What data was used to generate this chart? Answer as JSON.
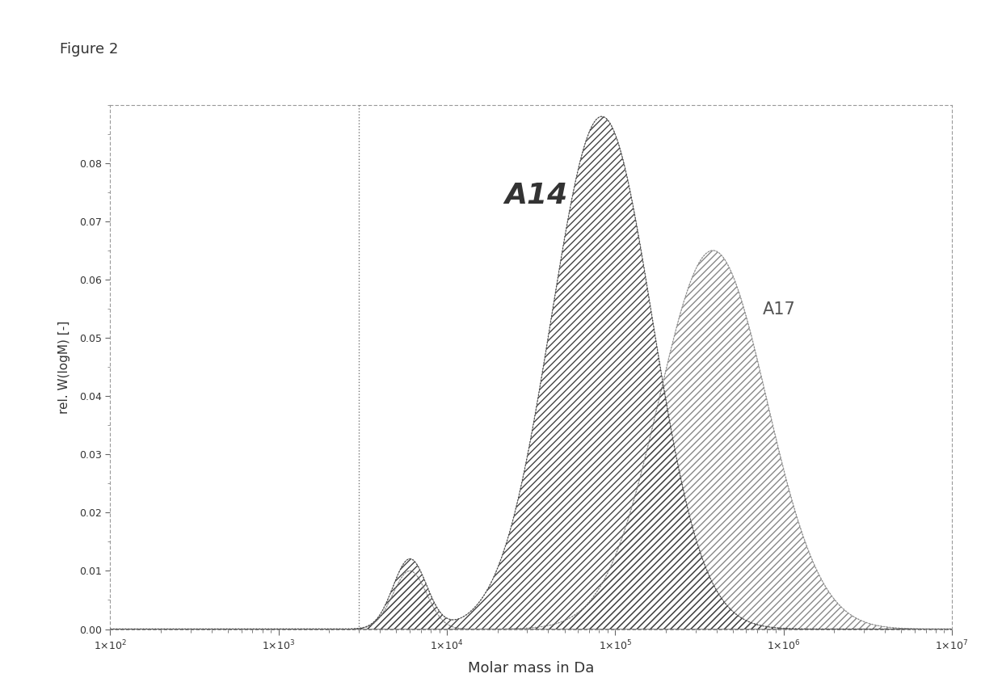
{
  "title": "Figure 2",
  "xlabel": "Molar mass in Da",
  "ylabel": "rel. W(logM) [-]",
  "xlim_log": [
    100,
    10000000
  ],
  "ylim": [
    0.0,
    0.09
  ],
  "yticks": [
    0.0,
    0.01,
    0.02,
    0.03,
    0.04,
    0.05,
    0.06,
    0.07,
    0.08
  ],
  "vline_x": 3000,
  "label_A14": "A14",
  "label_A17": "A17",
  "background_color": "#ffffff",
  "border_color": "#aaaaaa",
  "curve_A14_color": "#444444",
  "curve_A17_color": "#888888",
  "A14_peak_mu": 4.92,
  "A14_peak_sigma": 0.3,
  "A14_peak_amp": 0.088,
  "A14_shoulder_mu": 3.78,
  "A14_shoulder_sigma": 0.1,
  "A14_shoulder_amp": 0.012,
  "A17_peak_mu": 5.58,
  "A17_peak_sigma": 0.32,
  "A17_peak_amp": 0.065,
  "A17_shoulder_mu": 3.78,
  "A17_shoulder_sigma": 0.1,
  "A17_shoulder_amp": 0.01
}
